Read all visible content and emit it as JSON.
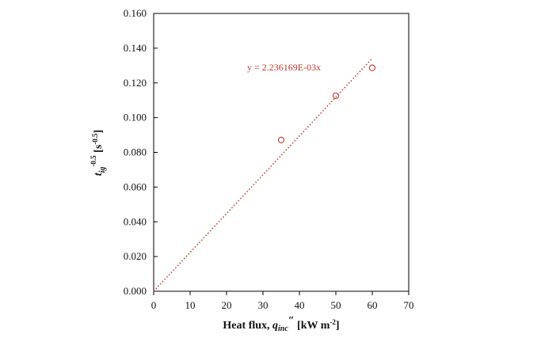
{
  "chart_data": {
    "type": "scatter",
    "xlim": [
      0,
      70
    ],
    "ylim": [
      0,
      0.16
    ],
    "xticks": [
      "0",
      "10",
      "20",
      "30",
      "40",
      "50",
      "60",
      "70"
    ],
    "yticks": [
      "0.000",
      "0.020",
      "0.040",
      "0.060",
      "0.080",
      "0.100",
      "0.120",
      "0.140",
      "0.160"
    ],
    "xlabel_text": "Heat flux, ",
    "xlabel_symbol": "q",
    "xlabel_sub": "inc",
    "xlabel_prime": "″",
    "xlabel_units": " [kW m",
    "xlabel_unit_sup": "-2",
    "xlabel_close": "]",
    "ylabel_symbol": "t",
    "ylabel_sub": "ig",
    "ylabel_sup": "-0.5",
    "ylabel_units": " [s",
    "ylabel_units_sup": "-0.5",
    "ylabel_close": "]",
    "series": [
      {
        "points": [
          [
            35,
            0.0871
          ],
          [
            50,
            0.1126
          ],
          [
            60,
            0.1287
          ]
        ],
        "color": "#c0392b",
        "marker": "open-circle"
      }
    ],
    "trendline": {
      "slope": 0.002236169,
      "x_range": [
        0,
        60
      ],
      "color": "#c0392b",
      "style": "dotted",
      "label": "y = 2.236169E-03x"
    },
    "grid": false
  }
}
